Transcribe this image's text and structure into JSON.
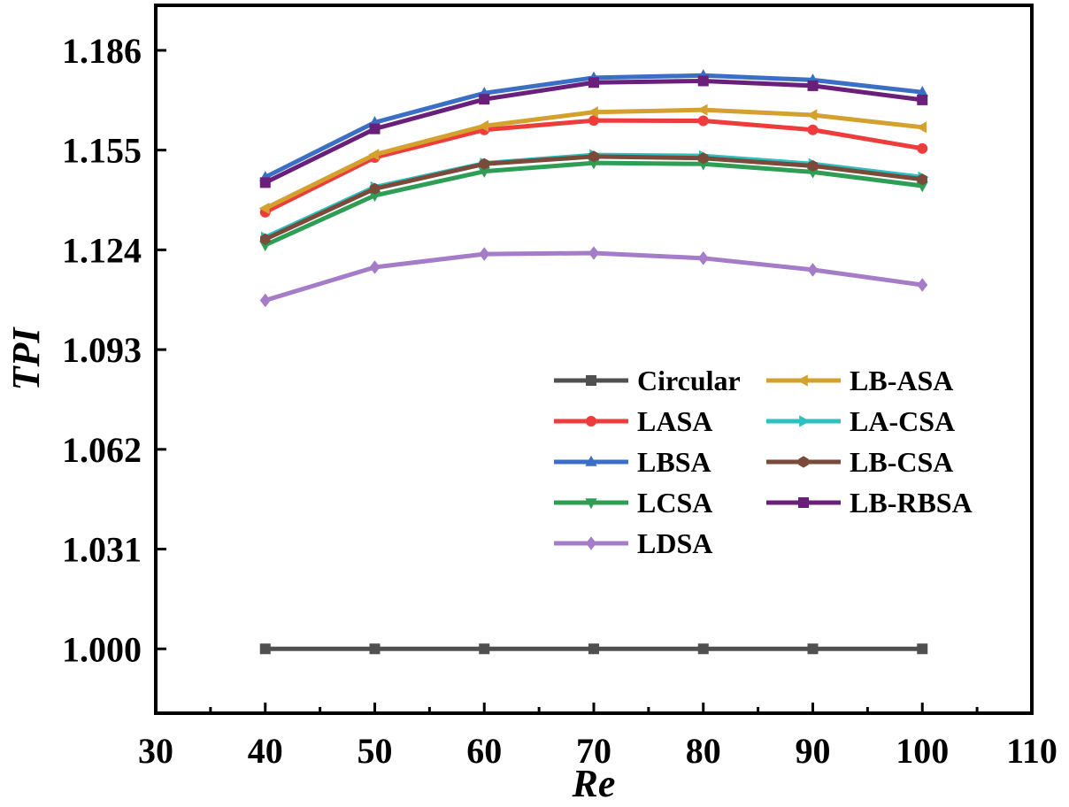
{
  "chart_data": {
    "type": "line",
    "xlabel": "Re",
    "ylabel": "TPI",
    "xlim": [
      30,
      110
    ],
    "ylim": [
      0.98,
      1.2
    ],
    "xticks": [
      30,
      40,
      50,
      60,
      70,
      80,
      90,
      100,
      110
    ],
    "yticks": [
      1.0,
      1.031,
      1.062,
      1.093,
      1.124,
      1.155,
      1.186
    ],
    "xtick_labels": [
      "30",
      "40",
      "50",
      "60",
      "70",
      "80",
      "90",
      "100",
      "110"
    ],
    "ytick_labels": [
      "1.000",
      "1.031",
      "1.062",
      "1.093",
      "1.124",
      "1.155",
      "1.186"
    ],
    "x": [
      40,
      50,
      60,
      70,
      80,
      90,
      100
    ],
    "legend_position": "center-right",
    "series": [
      {
        "name": "Circular",
        "color": "#505050",
        "marker": "square",
        "values": [
          1.0,
          1.0,
          1.0,
          1.0,
          1.0,
          1.0,
          1.0
        ]
      },
      {
        "name": "LASA",
        "color": "#ee3b3b",
        "marker": "circle",
        "values": [
          1.1357,
          1.1527,
          1.1613,
          1.1642,
          1.1641,
          1.1613,
          1.1555
        ]
      },
      {
        "name": "LBSA",
        "color": "#3b6fc6",
        "marker": "triangle-up",
        "values": [
          1.1466,
          1.1636,
          1.1727,
          1.1775,
          1.1782,
          1.1768,
          1.173
        ]
      },
      {
        "name": "LCSA",
        "color": "#2e9e55",
        "marker": "triangle-down",
        "values": [
          1.1255,
          1.1409,
          1.1484,
          1.151,
          1.1507,
          1.1482,
          1.1439
        ]
      },
      {
        "name": "LDSA",
        "color": "#a57cc8",
        "marker": "diamond",
        "values": [
          1.1083,
          1.1186,
          1.1227,
          1.123,
          1.1214,
          1.1178,
          1.1131
        ]
      },
      {
        "name": "LB-ASA",
        "color": "#d4a02e",
        "marker": "triangle-left",
        "values": [
          1.1369,
          1.1536,
          1.1625,
          1.1668,
          1.1675,
          1.1659,
          1.1621
        ]
      },
      {
        "name": "LA-CSA",
        "color": "#2ec0c0",
        "marker": "triangle-right",
        "values": [
          1.1279,
          1.1435,
          1.1509,
          1.1535,
          1.1532,
          1.1507,
          1.1466
        ]
      },
      {
        "name": "LB-CSA",
        "color": "#7a4a3a",
        "marker": "hexagon",
        "values": [
          1.1273,
          1.143,
          1.1507,
          1.153,
          1.1525,
          1.1501,
          1.1459
        ]
      },
      {
        "name": "LB-RBSA",
        "color": "#6a1f7a",
        "marker": "square",
        "values": [
          1.1449,
          1.1616,
          1.1708,
          1.176,
          1.1765,
          1.175,
          1.1706
        ]
      }
    ]
  }
}
